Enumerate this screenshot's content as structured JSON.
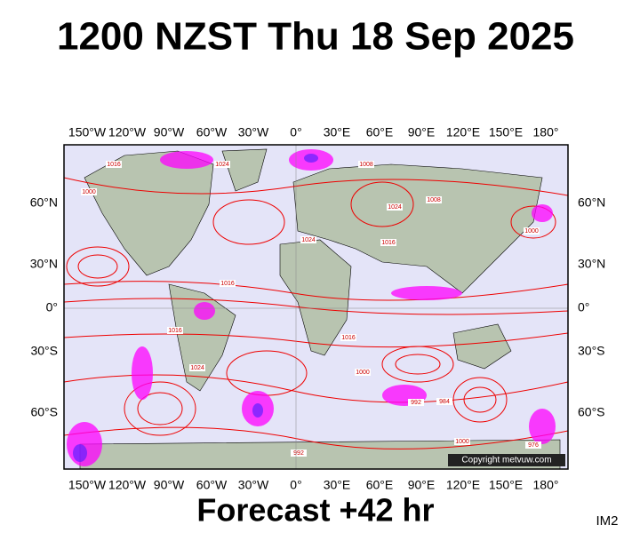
{
  "header": {
    "title": "1200 NZST Thu 18 Sep 2025"
  },
  "map": {
    "lon_labels": [
      "150°W",
      "120°W",
      "90°W",
      "60°W",
      "30°W",
      "0°",
      "30°E",
      "60°E",
      "90°E",
      "120°E",
      "150°E",
      "180°"
    ],
    "lat_labels": [
      "60°N",
      "30°N",
      "0°",
      "30°S",
      "60°S"
    ],
    "isobar_labels": [
      "1016",
      "1000",
      "1024",
      "1008",
      "1016",
      "1024",
      "1008",
      "1000",
      "1016",
      "1024",
      "1016",
      "1000",
      "992",
      "984",
      "1000",
      "976",
      "992",
      "1024",
      "1016"
    ],
    "copyright": "Copyright metvuw.com"
  },
  "footer": {
    "forecast": "Forecast +42 hr",
    "code": "IM2"
  }
}
